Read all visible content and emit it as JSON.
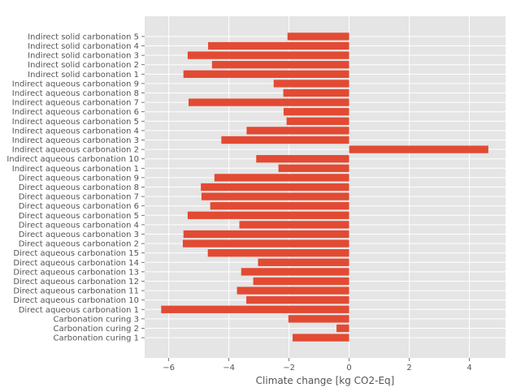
{
  "chart_data": {
    "type": "bar",
    "orientation": "horizontal",
    "title": "",
    "xlabel": "Climate change [kg CO2-Eq]",
    "ylabel": "",
    "xlim": [
      -6.8,
      5.2
    ],
    "xticks": [
      -6,
      -4,
      -2,
      0,
      2,
      4
    ],
    "xtick_labels": [
      "−6",
      "−4",
      "−2",
      "0",
      "2",
      "4"
    ],
    "grid": true,
    "style": "ggplot",
    "bar_color": "#E24A33",
    "background_color": "#E5E5E5",
    "categories": [
      "Carbonation curing 1",
      "Carbonation curing 2",
      "Carbonation curing 3",
      "Direct aqueous carbonation 1",
      "Direct aqueous carbonation 10",
      "Direct aqueous carbonation 11",
      "Direct aqueous carbonation 12",
      "Direct aqueous carbonation 13",
      "Direct aqueous carbonation 14",
      "Direct aqueous carbonation 15",
      "Direct aqueous carbonation 2",
      "Direct aqueous carbonation 3",
      "Direct aqueous carbonation 4",
      "Direct aqueous carbonation 5",
      "Direct aqueous carbonation 6",
      "Direct aqueous carbonation 7",
      "Direct aqueous carbonation 8",
      "Direct aqueous carbonation 9",
      "Indirect aqueous carbonation 1",
      "Indirect aqueous carbonation 10",
      "Indirect aqueous carbonation 2",
      "Indirect aqueous carbonation 3",
      "Indirect aqueous carbonation 4",
      "Indirect aqueous carbonation 5",
      "Indirect aqueous carbonation 6",
      "Indirect aqueous carbonation 7",
      "Indirect aqueous carbonation 8",
      "Indirect aqueous carbonation 9",
      "Indirect solid carbonation 1",
      "Indirect solid carbonation 2",
      "Indirect solid carbonation 3",
      "Indirect solid carbonation 4",
      "Indirect solid carbonation 5"
    ],
    "values": [
      -1.88,
      -0.42,
      -2.02,
      -6.25,
      -3.42,
      -3.73,
      -3.19,
      -3.59,
      -3.03,
      -4.7,
      -5.53,
      -5.51,
      -3.65,
      -5.37,
      -4.62,
      -4.91,
      -4.93,
      -4.48,
      -2.35,
      -3.09,
      4.63,
      -4.25,
      -3.41,
      -2.08,
      -2.18,
      -5.34,
      -2.19,
      -2.51,
      -5.51,
      -4.56,
      -5.37,
      -4.69,
      -2.05
    ]
  }
}
